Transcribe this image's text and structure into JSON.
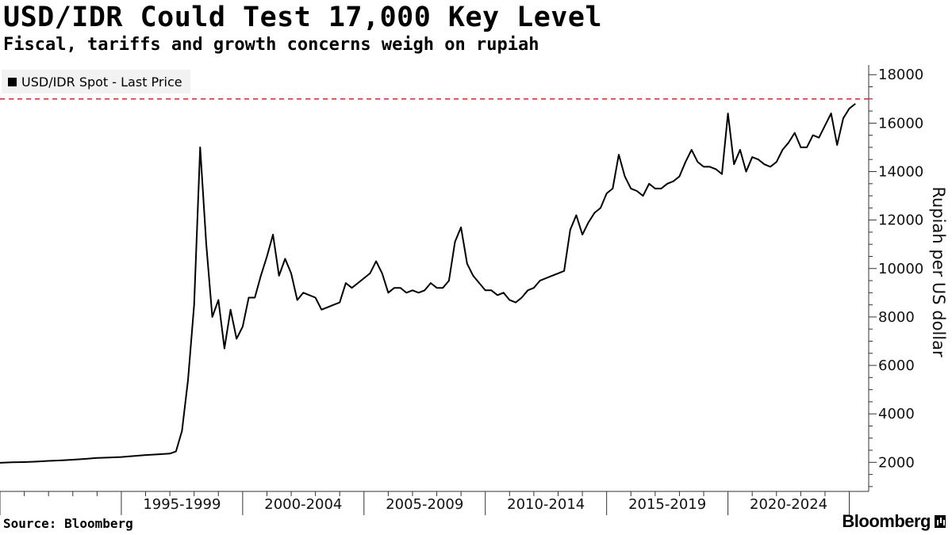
{
  "header": {
    "title": "USD/IDR Could Test 17,000 Key Level",
    "subtitle": "Fiscal, tariffs and growth concerns weigh on rupiah"
  },
  "footer": {
    "source": "Source: Bloomberg",
    "logo_text": "Bloomberg"
  },
  "chart_data": {
    "type": "line",
    "xlabel": "",
    "ylabel": "Rupiah per US dollar",
    "xlim": [
      1990,
      2025.8
    ],
    "ylim": [
      800,
      18400
    ],
    "y_ticks": [
      2000,
      4000,
      6000,
      8000,
      10000,
      12000,
      14000,
      16000,
      18000
    ],
    "y_tick_labels": [
      "2000",
      "4000",
      "6000",
      "8000",
      "10000",
      "12000",
      "14000",
      "16000",
      "18000"
    ],
    "x_category_boundaries": [
      1990,
      1995,
      2000,
      2005,
      2010,
      2015,
      2020,
      2025
    ],
    "x_categories": [
      "1995-1999",
      "2000-2004",
      "2005-2009",
      "2010-2014",
      "2015-2019",
      "2020-2024"
    ],
    "grid": false,
    "legend_position": "top-left",
    "reference_line": {
      "value": 17000,
      "color": "#e8323c",
      "style": "dashed"
    },
    "series": [
      {
        "name": "USD/IDR Spot - Last Price",
        "color": "#000000",
        "x": [
          1990.0,
          1990.5,
          1991.0,
          1991.5,
          1992.0,
          1992.5,
          1993.0,
          1993.5,
          1994.0,
          1994.5,
          1995.0,
          1995.5,
          1996.0,
          1996.5,
          1997.0,
          1997.25,
          1997.5,
          1997.75,
          1998.0,
          1998.25,
          1998.5,
          1998.75,
          1999.0,
          1999.25,
          1999.5,
          1999.75,
          2000.0,
          2000.25,
          2000.5,
          2000.75,
          2001.0,
          2001.25,
          2001.5,
          2001.75,
          2002.0,
          2002.25,
          2002.5,
          2002.75,
          2003.0,
          2003.25,
          2003.5,
          2003.75,
          2004.0,
          2004.25,
          2004.5,
          2004.75,
          2005.0,
          2005.25,
          2005.5,
          2005.75,
          2006.0,
          2006.25,
          2006.5,
          2006.75,
          2007.0,
          2007.25,
          2007.5,
          2007.75,
          2008.0,
          2008.25,
          2008.5,
          2008.75,
          2009.0,
          2009.25,
          2009.5,
          2009.75,
          2010.0,
          2010.25,
          2010.5,
          2010.75,
          2011.0,
          2011.25,
          2011.5,
          2011.75,
          2012.0,
          2012.25,
          2012.5,
          2012.75,
          2013.0,
          2013.25,
          2013.5,
          2013.75,
          2014.0,
          2014.25,
          2014.5,
          2014.75,
          2015.0,
          2015.25,
          2015.5,
          2015.75,
          2016.0,
          2016.25,
          2016.5,
          2016.75,
          2017.0,
          2017.25,
          2017.5,
          2017.75,
          2018.0,
          2018.25,
          2018.5,
          2018.75,
          2019.0,
          2019.25,
          2019.5,
          2019.75,
          2020.0,
          2020.25,
          2020.5,
          2020.75,
          2021.0,
          2021.25,
          2021.5,
          2021.75,
          2022.0,
          2022.25,
          2022.5,
          2022.75,
          2023.0,
          2023.25,
          2023.5,
          2023.75,
          2024.0,
          2024.25,
          2024.5,
          2024.75,
          2025.0,
          2025.25
        ],
        "values": [
          1980,
          2000,
          2010,
          2030,
          2060,
          2080,
          2110,
          2140,
          2180,
          2200,
          2220,
          2260,
          2300,
          2330,
          2360,
          2450,
          3300,
          5400,
          8500,
          15000,
          11000,
          8000,
          8700,
          6700,
          8300,
          7100,
          7600,
          8800,
          8800,
          9700,
          10500,
          11400,
          9700,
          10400,
          9800,
          8700,
          9000,
          8900,
          8800,
          8300,
          8400,
          8500,
          8600,
          9400,
          9200,
          9400,
          9600,
          9800,
          10300,
          9800,
          9000,
          9200,
          9200,
          9000,
          9100,
          9000,
          9100,
          9400,
          9200,
          9200,
          9500,
          11100,
          11700,
          10200,
          9700,
          9400,
          9100,
          9100,
          8900,
          9000,
          8700,
          8600,
          8800,
          9100,
          9200,
          9500,
          9600,
          9700,
          9800,
          9900,
          11600,
          12200,
          11400,
          11900,
          12300,
          12500,
          13100,
          13300,
          14700,
          13800,
          13300,
          13200,
          13000,
          13500,
          13300,
          13300,
          13500,
          13600,
          13800,
          14400,
          14900,
          14400,
          14200,
          14200,
          14100,
          13900,
          16400,
          14300,
          14900,
          14000,
          14600,
          14500,
          14300,
          14200,
          14400,
          14900,
          15200,
          15600,
          15000,
          15000,
          15500,
          15400,
          15900,
          16400,
          15100,
          16200,
          16600,
          16800
        ]
      }
    ]
  }
}
